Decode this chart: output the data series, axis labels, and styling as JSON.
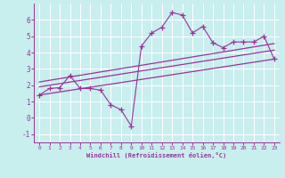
{
  "xlabel": "Windchill (Refroidissement éolien,°C)",
  "bg_color": "#c8eeee",
  "line_color": "#993399",
  "xlim": [
    -0.5,
    23.5
  ],
  "ylim": [
    -1.5,
    7.0
  ],
  "yticks": [
    -1,
    0,
    1,
    2,
    3,
    4,
    5,
    6
  ],
  "xticks": [
    0,
    1,
    2,
    3,
    4,
    5,
    6,
    7,
    8,
    9,
    10,
    11,
    12,
    13,
    14,
    15,
    16,
    17,
    18,
    19,
    20,
    21,
    22,
    23
  ],
  "scatter_x": [
    0,
    1,
    2,
    3,
    4,
    5,
    6,
    7,
    8,
    9,
    10,
    11,
    12,
    13,
    14,
    15,
    16,
    17,
    18,
    19,
    20,
    21,
    22,
    23
  ],
  "scatter_y": [
    1.4,
    1.8,
    1.85,
    2.6,
    1.8,
    1.8,
    1.7,
    0.8,
    0.5,
    -0.5,
    4.4,
    5.2,
    5.55,
    6.45,
    6.3,
    5.2,
    5.6,
    4.6,
    4.3,
    4.65,
    4.65,
    4.65,
    5.0,
    3.6
  ],
  "line1_x": [
    0,
    23
  ],
  "line1_y": [
    1.4,
    3.6
  ],
  "line2_x": [
    0,
    23
  ],
  "line2_y": [
    1.9,
    4.15
  ],
  "line3_x": [
    0,
    23
  ],
  "line3_y": [
    2.2,
    4.55
  ]
}
